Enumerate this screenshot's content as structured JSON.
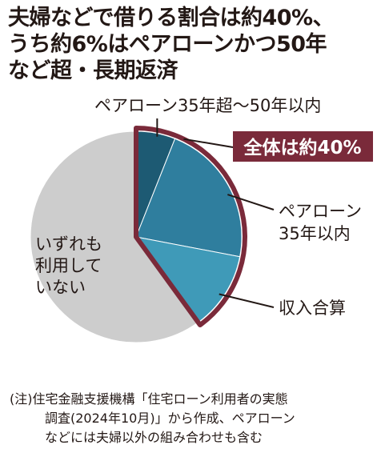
{
  "headline": {
    "lines": [
      "夫婦などで借りる割合は約40%、",
      "うち約6%はペアローンかつ50年",
      "など超・長期返済"
    ]
  },
  "chart_data": {
    "type": "pie",
    "slices": [
      {
        "label": "ペアローン35年超〜50年以内",
        "value": 6,
        "color": "#1d5a73"
      },
      {
        "label": "ペアローン 35年以内",
        "label_lines": [
          "ペアローン",
          "35年以内"
        ],
        "value": 22,
        "color": "#2f7e9e"
      },
      {
        "label": "収入合算",
        "value": 12,
        "color": "#3f9ab8"
      },
      {
        "label": "いずれも 利用して いない",
        "label_lines": [
          "いずれも",
          "利用して",
          "いない"
        ],
        "value": 60,
        "color": "#cdcdcd"
      }
    ],
    "highlight": {
      "label": "全体は約40%",
      "value": 40,
      "color": "#7a2a3a"
    }
  },
  "note": {
    "lines": [
      "(注)住宅金融支援機構「住宅ローン利用者の実態",
      "調査(2024年10月)」から作成、ペアローン",
      "などには夫婦以外の組み合わせも含む"
    ]
  }
}
